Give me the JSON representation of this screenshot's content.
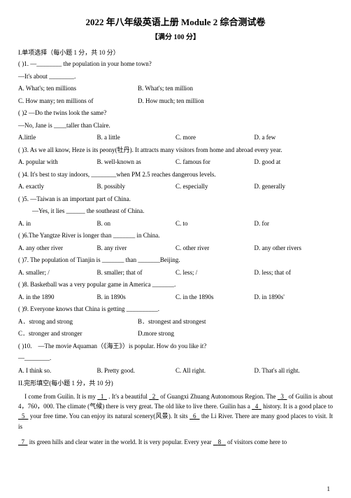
{
  "title": "2022 年八年级英语上册 Module 2 综合测试卷",
  "subtitle": "【满分 100 分】",
  "section1_label": "I.单项选择（每小题 1 分，共 10 分）",
  "q1": {
    "line": "( )1. —________ the population in your home town?",
    "reply": "—It's about ________.",
    "a": "A. What's; ten millions",
    "b": "B. What's; ten million",
    "c": "C. How many; ten millions of",
    "d": "D. How much; ten million"
  },
  "q2": {
    "line": "( )2 —Do the twins look the same?",
    "reply": "—No, Jane is ____taller than Claire.",
    "a": "A.little",
    "b": "B. a little",
    "c": "C. more",
    "d": "D. a few"
  },
  "q3": {
    "line": "( )3. As we all know, Heze is its peony(牡丹). It attracts many visitors from home and abroad every year.",
    "a": "A. popular with",
    "b": "B. well-known as",
    "c": "C. famous for",
    "d": "D. good at"
  },
  "q4": {
    "line": "( )4. It's best to stay indoors, ________when PM 2.5 reaches dangerous levels.",
    "a": "A. exactly",
    "b": "B. possibly",
    "c": "C. especially",
    "d": "D. generally"
  },
  "q5": {
    "line": "( )5. —Taiwan is an important part of China.",
    "reply": "—Yes, it lies ______ the southeast of China.",
    "a": "A. in",
    "b": "B. on",
    "c": "C. to",
    "d": "D. for"
  },
  "q6": {
    "line": "( )6.The Yangtze River is longer than _______ in China.",
    "a": "A. any other river",
    "b": "B. any river",
    "c": "C. other river",
    "d": "D. any other rivers"
  },
  "q7": {
    "line": "( )7. The population of Tianjin is _______ than _______Beijing.",
    "a": "A. smaller; /",
    "b": "B. smaller; that of",
    "c": "C. less; /",
    "d": "D. less; that of"
  },
  "q8": {
    "line": "( )8. Basketball was a very popular game in America _______.",
    "a": "A. in the 1890",
    "b": "B. in 1890s",
    "c": "C. in the 1890s",
    "d": "D. in 1890s'"
  },
  "q9": {
    "line": "( )9. Everyone knows that China is getting __________.",
    "a": "A．strong and strong",
    "b": "B．strongest and strongest",
    "c": "C．stronger and stronger",
    "d": "D.more strong"
  },
  "q10": {
    "line": "( )10.　—The movie Aquaman（《海王》）is popular. How do you like it?",
    "reply": "—________.",
    "a": "A. I think so.",
    "b": "B. Pretty good.",
    "c": "C. All right.",
    "d": "D. That's all right."
  },
  "section2_label": "II.完形填空(每小题 1 分，共 10 分)",
  "cloze": {
    "p1_a": "I come from Guilin. It is my",
    "p1_b": ". It's a beautiful",
    "p1_c": "of Guangxi Zhuang Autonomous Region. The",
    "p1_d": "of Guilin is about 4，760，000. The climate (气候) there is very great. The old like to live there. Guilin has a",
    "p1_e": "history. It is a good place to",
    "p1_f": "your free time. You can enjoy its natural scenery(风景). It sits",
    "p1_g": "the Li River. There are many good places to visit. It is",
    "p2_a": "its green hills and clear water in the world. It is very popular. Every year",
    "p2_b": "of visitors come here to",
    "b1": "1",
    "b2": "2",
    "b3": "3",
    "b4": "4",
    "b5": "5",
    "b6": "6",
    "b7": "7",
    "b8": "8"
  },
  "page_number": "1"
}
